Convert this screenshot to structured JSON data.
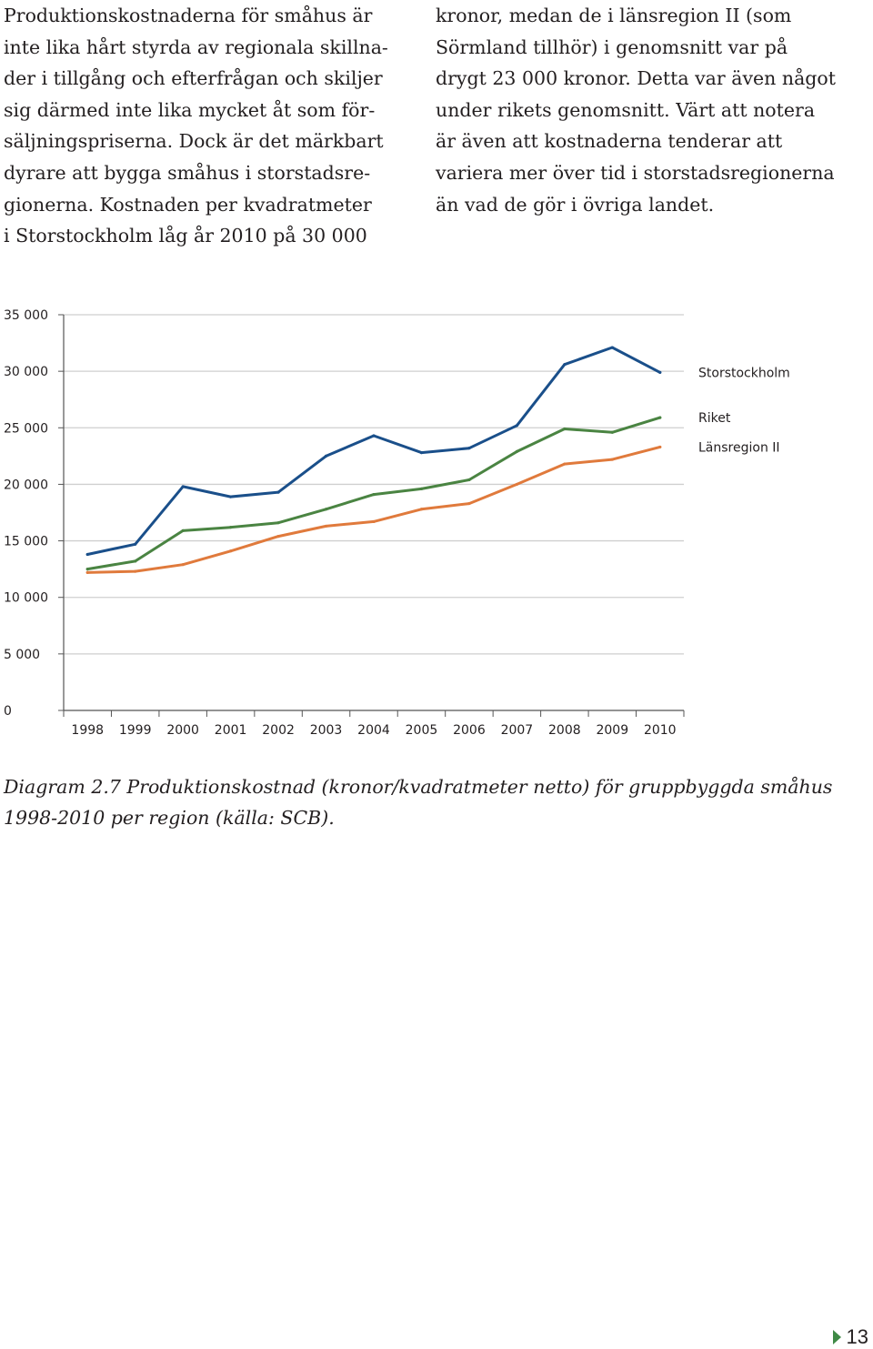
{
  "body_text": {
    "left_column": [
      "Produktionskostnaderna för småhus är",
      "inte lika hårt styrda av regionala skillna-",
      "der i tillgång och efterfrågan och skiljer",
      "sig därmed inte lika mycket åt som för-",
      "säljningspriserna. Dock är det märkbart",
      "dyrare att bygga småhus i storstadsre-",
      "gionerna. Kostnaden per kvadratmeter",
      "i Storstockholm låg år 2010 på 30 000"
    ],
    "right_column": [
      "kronor, medan de i länsregion II (som",
      "Sörmland tillhör) i genomsnitt var på",
      "drygt 23 000 kronor. Detta var även något",
      "under rikets genomsnitt. Värt att notera",
      "är även att kostnaderna tenderar att",
      "variera mer över tid i storstadsregionerna",
      "än vad de gör i övriga landet."
    ]
  },
  "chart_data": {
    "type": "line",
    "title": "",
    "xlabel": "",
    "ylabel": "",
    "categories": [
      "1998",
      "1999",
      "2000",
      "2001",
      "2002",
      "2003",
      "2004",
      "2005",
      "2006",
      "2007",
      "2008",
      "2009",
      "2010"
    ],
    "ylim": [
      0,
      35000
    ],
    "yticks": [
      0,
      5000,
      10000,
      15000,
      20000,
      25000,
      30000,
      35000
    ],
    "ytick_labels": [
      "0",
      "5 000",
      "10 000",
      "15 000",
      "20 000",
      "25 000",
      "30 000",
      "35 000"
    ],
    "grid": true,
    "legend": "right, labels at line ends",
    "series": [
      {
        "name": "Storstockholm",
        "color": "#1a4f8a",
        "values": [
          13800,
          14700,
          19800,
          18900,
          19300,
          22500,
          24300,
          22800,
          23200,
          25200,
          30600,
          32100,
          29900
        ]
      },
      {
        "name": "Riket",
        "color": "#4a8442",
        "values": [
          12500,
          13200,
          15900,
          16200,
          16600,
          17800,
          19100,
          19600,
          20400,
          22900,
          24900,
          24600,
          25900
        ]
      },
      {
        "name": "Länsregion II",
        "color": "#e07a3c",
        "values": [
          12200,
          12300,
          12900,
          14100,
          15400,
          16300,
          16700,
          17800,
          18300,
          20000,
          21800,
          22200,
          23300
        ]
      }
    ]
  },
  "caption": {
    "line1": "Diagram 2.7 Produktionskostnad (kronor/kvadratmeter netto) för gruppbyggda småhus",
    "line2": "1998-2010 per region (källa: SCB)."
  },
  "page": {
    "number": "13",
    "accent_color": "#3f8a46"
  }
}
